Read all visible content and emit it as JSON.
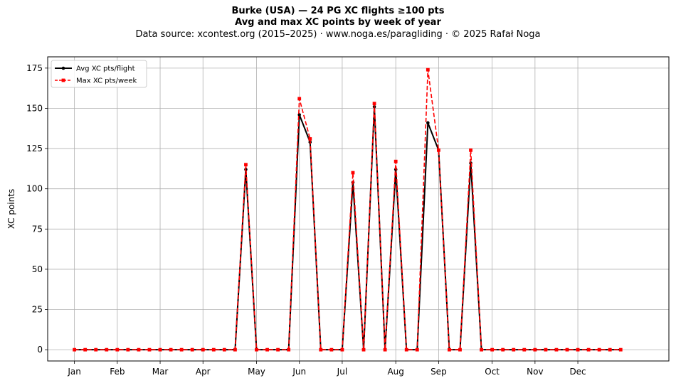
{
  "header": {
    "title": "Burke (USA)  —  24 PG XC flights ≥100 pts",
    "subtitle": "Avg and max XC points by week of year",
    "source": "Data source: xcontest.org (2015–2025)  ·  www.noga.es/paragliding  ·  © 2025 Rafał Noga"
  },
  "chart_data": {
    "type": "line",
    "xlabel": "",
    "ylabel": "XC points",
    "ylim": [
      -7,
      182
    ],
    "xlim": [
      -2.5,
      55.5
    ],
    "yticks": [
      0,
      25,
      50,
      75,
      100,
      125,
      150,
      175
    ],
    "xticks": [
      {
        "week": 0,
        "label": "Jan"
      },
      {
        "week": 4,
        "label": "Feb"
      },
      {
        "week": 8,
        "label": "Mar"
      },
      {
        "week": 12,
        "label": "Apr"
      },
      {
        "week": 17,
        "label": "May"
      },
      {
        "week": 21,
        "label": "Jun"
      },
      {
        "week": 25,
        "label": "Jul"
      },
      {
        "week": 30,
        "label": "Aug"
      },
      {
        "week": 34,
        "label": "Sep"
      },
      {
        "week": 39,
        "label": "Oct"
      },
      {
        "week": 43,
        "label": "Nov"
      },
      {
        "week": 47,
        "label": "Dec"
      }
    ],
    "grid": true,
    "legend_position": "top-left",
    "x": [
      0,
      1,
      2,
      3,
      4,
      5,
      6,
      7,
      8,
      9,
      10,
      11,
      12,
      13,
      14,
      15,
      16,
      17,
      18,
      19,
      20,
      21,
      22,
      23,
      24,
      25,
      26,
      27,
      28,
      29,
      30,
      31,
      32,
      33,
      34,
      35,
      36,
      37,
      38,
      39,
      40,
      41,
      42,
      43,
      44,
      45,
      46,
      47,
      48,
      49,
      50,
      51
    ],
    "series": [
      {
        "name": "Avg XC pts/flight",
        "color": "#000000",
        "style": "solid",
        "marker": "circle",
        "values": [
          0,
          0,
          0,
          0,
          0,
          0,
          0,
          0,
          0,
          0,
          0,
          0,
          0,
          0,
          0,
          0,
          112,
          0,
          0,
          0,
          0,
          146,
          129,
          0,
          0,
          0,
          104,
          0,
          151,
          0,
          112,
          0,
          0,
          141,
          124,
          0,
          0,
          116,
          0,
          0,
          0,
          0,
          0,
          0,
          0,
          0,
          0,
          0,
          0,
          0,
          0,
          0
        ]
      },
      {
        "name": "Max XC pts/week",
        "color": "#ff0000",
        "style": "dashed",
        "marker": "square",
        "values": [
          0,
          0,
          0,
          0,
          0,
          0,
          0,
          0,
          0,
          0,
          0,
          0,
          0,
          0,
          0,
          0,
          115,
          0,
          0,
          0,
          0,
          156,
          131,
          0,
          0,
          0,
          110,
          0,
          153,
          0,
          117,
          0,
          0,
          174,
          124,
          0,
          0,
          124,
          0,
          0,
          0,
          0,
          0,
          0,
          0,
          0,
          0,
          0,
          0,
          0,
          0,
          0
        ]
      }
    ]
  }
}
